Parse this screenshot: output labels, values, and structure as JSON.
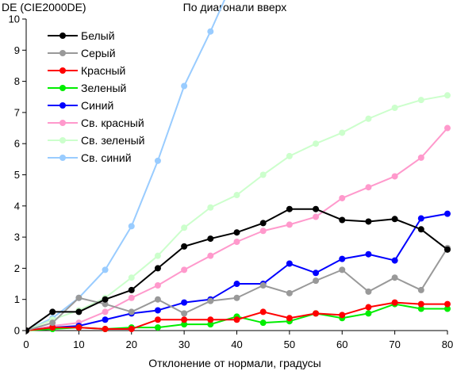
{
  "chart_data": {
    "type": "line",
    "title": "По диагонали вверх",
    "ylabel": "DE (CIE2000DE)",
    "xlabel": "Отклонение от нормали, градусы",
    "xlim": [
      0,
      80
    ],
    "ylim": [
      0,
      10
    ],
    "x_ticks": [
      0,
      10,
      20,
      30,
      40,
      50,
      60,
      70,
      80
    ],
    "y_ticks": [
      0,
      1,
      2,
      3,
      4,
      5,
      6,
      7,
      8,
      9,
      10
    ],
    "grid": false,
    "legend_position": "top-left",
    "x": [
      0,
      5,
      10,
      15,
      20,
      25,
      30,
      35,
      40,
      45,
      50,
      55,
      60,
      65,
      70,
      75,
      80
    ],
    "series": [
      {
        "name": "Белый",
        "color": "#000000",
        "values": [
          0,
          0.6,
          0.6,
          1.0,
          1.3,
          2.0,
          2.7,
          2.95,
          3.15,
          3.45,
          3.9,
          3.9,
          3.55,
          3.5,
          3.58,
          3.25,
          2.6
        ]
      },
      {
        "name": "Серый",
        "color": "#999999",
        "values": [
          0,
          0.25,
          1.05,
          0.85,
          0.6,
          1.0,
          0.55,
          0.95,
          1.05,
          1.45,
          1.2,
          1.6,
          1.95,
          1.25,
          1.7,
          1.3,
          2.65
        ]
      },
      {
        "name": "Красный",
        "color": "#ff0000",
        "values": [
          0,
          0.1,
          0.1,
          0.05,
          0.05,
          0.35,
          0.35,
          0.35,
          0.35,
          0.6,
          0.4,
          0.55,
          0.5,
          0.75,
          0.9,
          0.85,
          0.85
        ]
      },
      {
        "name": "Зеленый",
        "color": "#00ee00",
        "values": [
          0,
          0.05,
          0.1,
          0.05,
          0.1,
          0.1,
          0.2,
          0.2,
          0.45,
          0.25,
          0.3,
          0.55,
          0.4,
          0.55,
          0.85,
          0.7,
          0.7
        ]
      },
      {
        "name": "Синий",
        "color": "#0000ff",
        "values": [
          0,
          0.1,
          0.15,
          0.35,
          0.55,
          0.65,
          0.9,
          1.0,
          1.5,
          1.5,
          2.15,
          1.85,
          2.3,
          2.45,
          2.25,
          3.6,
          3.75
        ]
      },
      {
        "name": "Св. красный",
        "color": "#ff99cc",
        "values": [
          0,
          0.15,
          0.25,
          0.6,
          1.05,
          1.45,
          1.95,
          2.4,
          2.85,
          3.2,
          3.4,
          3.65,
          4.25,
          4.6,
          4.95,
          5.55,
          6.5
        ]
      },
      {
        "name": "Св. зеленый",
        "color": "#ccffcc",
        "values": [
          0,
          0.35,
          0.65,
          1.05,
          1.7,
          2.4,
          3.3,
          3.95,
          4.35,
          5.0,
          5.6,
          6.0,
          6.35,
          6.8,
          7.15,
          7.4,
          7.55
        ]
      },
      {
        "name": "Св. синий",
        "color": "#99ccff",
        "values": [
          0,
          0.4,
          1.05,
          1.95,
          3.35,
          5.45,
          7.85,
          9.6,
          11.5,
          null,
          null,
          null,
          null,
          null,
          null,
          null,
          null
        ]
      }
    ]
  }
}
